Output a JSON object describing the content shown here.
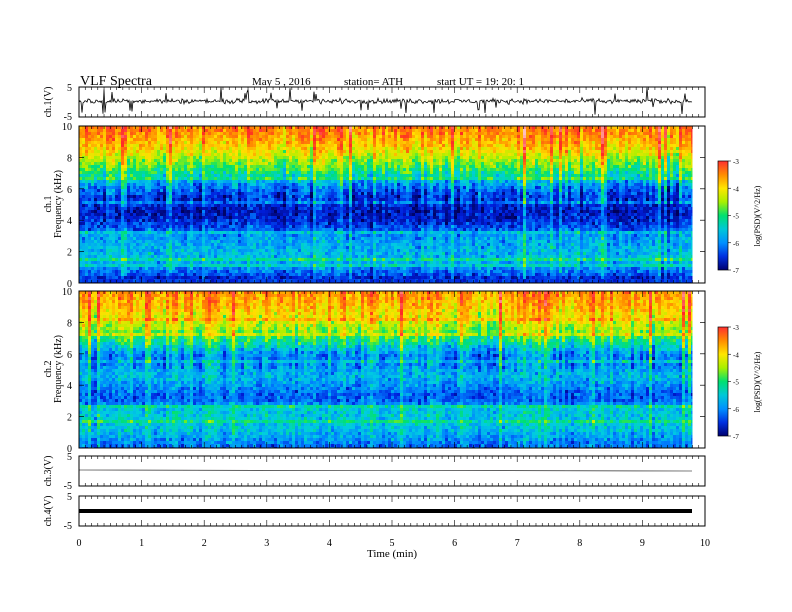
{
  "header": {
    "title": "VLF  Spectra",
    "date": "May 5  , 2016",
    "station": "station= ATH",
    "start_ut": "start  UT  =    19: 20: 1"
  },
  "x_axis": {
    "label": "Time  (min)",
    "ticks": [
      "0",
      "1",
      "2",
      "3",
      "4",
      "5",
      "6",
      "7",
      "8",
      "9",
      "10"
    ]
  },
  "panels": {
    "ch1_wave": {
      "ylabel": "ch.1(V)",
      "ticks": [
        "5",
        "-5"
      ]
    },
    "ch1_spec": {
      "ylabel_top": "ch.1",
      "ylabel": "Frequency  (kHz)",
      "ticks": [
        "10",
        "8",
        "6",
        "4",
        "2",
        "0"
      ]
    },
    "ch2_spec": {
      "ylabel_top": "ch.2",
      "ylabel": "Frequency  (kHz)",
      "ticks": [
        "10",
        "8",
        "6",
        "4",
        "2",
        "0"
      ]
    },
    "ch3_wave": {
      "ylabel": "ch.3(V)",
      "ticks": [
        "5",
        "-5"
      ]
    },
    "ch4_wave": {
      "ylabel": "ch.4(V)",
      "ticks": [
        "5",
        "-5"
      ]
    }
  },
  "colorbar": {
    "label": "log(PSD)(V^2/Hz)",
    "ticks": [
      "-3",
      "-4",
      "-5",
      "-6",
      "-7"
    ],
    "colors": [
      "#ff3030",
      "#ff8c00",
      "#ffe600",
      "#a8f000",
      "#00e070",
      "#00c8d8",
      "#0090ff",
      "#0030e0",
      "#000070"
    ]
  },
  "chart_data": {
    "type": "heatmap",
    "title": "VLF  Spectra",
    "xlabel": "Time  (min)",
    "xlim": [
      0,
      10
    ],
    "data_end_min": 9.8,
    "series": [
      {
        "name": "ch.1",
        "ylabel": "Frequency  (kHz)",
        "ylim": [
          0,
          10
        ],
        "freq_profile_kHz": [
          0,
          0.5,
          1,
          1.5,
          2,
          2.5,
          3,
          3.5,
          4,
          4.5,
          5,
          5.5,
          6,
          6.5,
          7,
          7.5,
          8,
          8.5,
          9,
          9.5,
          10
        ],
        "log_psd_profile": [
          -7.0,
          -6.4,
          -6.1,
          -5.9,
          -5.9,
          -6.0,
          -6.1,
          -6.4,
          -6.6,
          -6.7,
          -6.6,
          -6.5,
          -6.3,
          -5.9,
          -5.5,
          -5.2,
          -4.9,
          -4.6,
          -4.4,
          -4.2,
          -4.1
        ]
      },
      {
        "name": "ch.2",
        "ylabel": "Frequency  (kHz)",
        "ylim": [
          0,
          10
        ],
        "freq_profile_kHz": [
          0,
          0.5,
          1,
          1.5,
          2,
          2.5,
          3,
          3.5,
          4,
          4.5,
          5,
          5.5,
          6,
          6.5,
          7,
          7.5,
          8,
          8.5,
          9,
          9.5,
          10
        ],
        "log_psd_profile": [
          -6.3,
          -6.1,
          -5.9,
          -5.8,
          -5.8,
          -5.8,
          -6.3,
          -6.3,
          -6.1,
          -5.9,
          -6.0,
          -6.2,
          -6.1,
          -5.7,
          -5.3,
          -5.0,
          -4.8,
          -4.6,
          -4.4,
          -4.3,
          -4.2
        ]
      }
    ],
    "colorbar_range": [
      -7,
      -3
    ],
    "waveforms": {
      "ch.1": {
        "ylim": [
          -5,
          5
        ],
        "mean_V": 0.3
      },
      "ch.3": {
        "ylim": [
          -5,
          5
        ],
        "mean_V": 0.0
      },
      "ch.4": {
        "ylim": [
          -5,
          5
        ],
        "mean_V": 0.0
      }
    }
  }
}
